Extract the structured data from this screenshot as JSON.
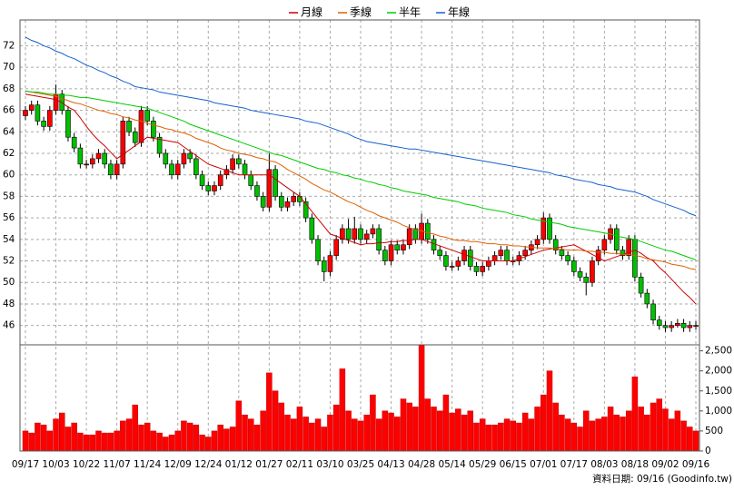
{
  "chart_data": {
    "type": "candlestick",
    "categories": [
      "09/17",
      null,
      null,
      null,
      null,
      "10/03",
      null,
      null,
      null,
      null,
      "10/22",
      null,
      null,
      null,
      null,
      "11/07",
      null,
      null,
      null,
      null,
      "11/24",
      null,
      null,
      null,
      null,
      "12/09",
      null,
      null,
      null,
      null,
      "12/24",
      null,
      null,
      null,
      null,
      "01/12",
      null,
      null,
      null,
      null,
      "01/27",
      null,
      null,
      null,
      null,
      "02/11",
      null,
      null,
      null,
      null,
      "03/10",
      null,
      null,
      null,
      null,
      "03/25",
      null,
      null,
      null,
      null,
      "04/13",
      null,
      null,
      null,
      null,
      "04/28",
      null,
      null,
      null,
      null,
      "05/14",
      null,
      null,
      null,
      null,
      "05/29",
      null,
      null,
      null,
      null,
      "06/15",
      null,
      null,
      null,
      null,
      "07/01",
      null,
      null,
      null,
      null,
      "07/17",
      null,
      null,
      null,
      null,
      "08/03",
      null,
      null,
      null,
      null,
      "08/18",
      null,
      null,
      null,
      null,
      "09/02",
      null,
      null,
      null,
      null,
      "09/16"
    ],
    "open": [
      65.5,
      66,
      66.5,
      65,
      64.5,
      66,
      67.5,
      66,
      63.5,
      62.5,
      61,
      61,
      61.5,
      62,
      61,
      60,
      61,
      65,
      64,
      63,
      66,
      65,
      63.5,
      62,
      61,
      60,
      61,
      62,
      61.5,
      60,
      59,
      58.5,
      59,
      60,
      60.5,
      61.5,
      61,
      60,
      59,
      58,
      57,
      60.5,
      58,
      57,
      57.5,
      58,
      57.5,
      56,
      54,
      52,
      51,
      52.5,
      54,
      55,
      54,
      55,
      54,
      54.5,
      55,
      53,
      52,
      53.5,
      53,
      53.5,
      55,
      54,
      55.5,
      54,
      53,
      52.5,
      51.5,
      51.5,
      52,
      53,
      51.5,
      51,
      51.5,
      52,
      52.5,
      53,
      52,
      52,
      52.5,
      53,
      53.5,
      54,
      56,
      54,
      53,
      52.5,
      52,
      51,
      50.5,
      50,
      52,
      53,
      54,
      55,
      53,
      52.5,
      54,
      50.5,
      49,
      48,
      46.5,
      46,
      45.8,
      46,
      46.2,
      45.8,
      46
    ],
    "high": [
      66.4,
      66.9,
      66.9,
      65.4,
      66.4,
      68.4,
      67.9,
      66.4,
      63.9,
      62.9,
      61.4,
      61.9,
      62.4,
      62.4,
      61.4,
      61.4,
      65.4,
      65.4,
      64.4,
      66.4,
      66.4,
      65.4,
      63.9,
      62.4,
      61.4,
      61.4,
      62.4,
      62.4,
      61.9,
      60.4,
      59.4,
      59.4,
      60.4,
      60.9,
      61.9,
      61.9,
      61.4,
      60.4,
      59.4,
      58.4,
      62,
      60.9,
      58.4,
      57.9,
      58.4,
      58.4,
      57.9,
      56.4,
      54.4,
      52.4,
      52.9,
      54.4,
      55.4,
      55.9,
      56.1,
      55.4,
      54.9,
      55.4,
      55.4,
      53.4,
      53.9,
      53.9,
      53.9,
      55.4,
      55.4,
      56.4,
      55.9,
      54.4,
      53.4,
      52.9,
      51.9,
      52.4,
      53.4,
      53.4,
      51.9,
      51.9,
      52.4,
      52.9,
      53.4,
      53.4,
      52.4,
      52.9,
      53.4,
      53.9,
      54.4,
      56.5,
      56.4,
      54.4,
      53.4,
      52.9,
      52.4,
      51.4,
      50.9,
      52.4,
      53.4,
      54.4,
      55.4,
      55.4,
      53.4,
      54.4,
      54.4,
      50.9,
      49.4,
      48.4,
      46.9,
      46.4,
      46.4,
      46.6,
      46.6,
      46.4,
      46.4
    ],
    "low": [
      65.1,
      65.6,
      64.6,
      64.1,
      64.1,
      65.6,
      65.6,
      63.1,
      62.1,
      60.6,
      60.6,
      60.6,
      61.1,
      60.6,
      59.6,
      59.6,
      60.6,
      63.6,
      62.6,
      62.6,
      64.6,
      63.1,
      61.6,
      60.6,
      59.6,
      59.6,
      60.6,
      61.1,
      59.6,
      58.6,
      58.1,
      58.1,
      58.6,
      59.6,
      60.1,
      60.6,
      59.6,
      58.6,
      57.6,
      56.6,
      56.6,
      57.6,
      56.6,
      56.6,
      57.1,
      57.1,
      55.6,
      53.6,
      51.6,
      50.1,
      50.6,
      52.1,
      53.6,
      53.6,
      53.6,
      53.6,
      53.6,
      54.1,
      52.6,
      51.6,
      51.6,
      52.6,
      52.6,
      53.1,
      53.6,
      53.6,
      53.6,
      52.6,
      52.1,
      51.1,
      51.1,
      51.1,
      51.6,
      51.1,
      50.6,
      50.6,
      51.1,
      51.6,
      52.1,
      51.6,
      51.6,
      51.6,
      52.1,
      52.6,
      53.1,
      53.6,
      53.6,
      52.6,
      52.1,
      51.6,
      50.6,
      50.1,
      48.8,
      49.6,
      51.6,
      52.6,
      53.6,
      52.6,
      52.1,
      52.1,
      50.1,
      48.6,
      47.6,
      46.1,
      45.6,
      45.4,
      45.4,
      45.8,
      45.4,
      45.4,
      45.6
    ],
    "close": [
      66,
      66.5,
      65,
      64.5,
      66,
      67.5,
      66,
      63.5,
      62.5,
      61,
      61,
      61.5,
      62,
      61,
      60,
      61,
      65,
      64,
      63,
      66,
      65,
      63.5,
      62,
      61,
      60,
      61,
      62,
      61.5,
      60,
      59,
      58.5,
      59,
      60,
      60.5,
      61.5,
      61,
      60,
      59,
      58,
      57,
      60.5,
      58,
      57,
      57.5,
      58,
      57.5,
      56,
      54,
      52,
      51,
      52.5,
      54,
      55,
      54,
      55,
      54,
      54.5,
      55,
      53,
      52,
      53.5,
      53,
      53.5,
      55,
      54,
      55.5,
      54,
      53,
      52.5,
      51.5,
      51.5,
      52,
      53,
      51.5,
      51,
      51.5,
      52,
      52.5,
      53,
      52,
      52,
      52.5,
      53,
      53.5,
      54,
      56,
      54,
      53,
      52.5,
      52,
      51,
      50.5,
      50,
      52,
      53,
      54,
      55,
      53,
      52.5,
      54,
      50.5,
      49,
      48,
      46.5,
      46,
      45.8,
      46,
      46.2,
      45.8,
      46,
      46
    ],
    "up_color": "#ff0000",
    "down_color": "#00c000",
    "ylim": [
      44.2,
      74.4
    ],
    "yticks": [
      46,
      48,
      50,
      52,
      54,
      56,
      58,
      60,
      62,
      64,
      66,
      68,
      70,
      72
    ],
    "grid": true,
    "legend": "top",
    "series": [
      {
        "name": "月線",
        "color": "#cc0000",
        "values": [
          67.5,
          67.4,
          67.3,
          67.2,
          67.1,
          67.0,
          66.7,
          66.3,
          66.0,
          65.3,
          64.5,
          63.8,
          63.2,
          62.7,
          62.1,
          61.5,
          61.9,
          62.3,
          62.7,
          63.1,
          63.5,
          63.4,
          63.3,
          63.2,
          63.1,
          63.0,
          62.6,
          62.2,
          61.8,
          61.4,
          61.0,
          60.8,
          60.6,
          60.4,
          60.2,
          60.0,
          60.0,
          60.0,
          60.0,
          60.0,
          60.0,
          59.6,
          59.2,
          58.8,
          58.4,
          58.0,
          57.3,
          56.6,
          55.9,
          55.2,
          54.5,
          54.3,
          54.1,
          53.9,
          53.7,
          53.5,
          53.6,
          53.6,
          53.7,
          53.7,
          53.8,
          53.8,
          53.9,
          53.9,
          54.0,
          54.0,
          53.8,
          53.6,
          53.4,
          53.2,
          53.0,
          52.8,
          52.6,
          52.4,
          52.2,
          52.0,
          52.0,
          52.0,
          52.0,
          52.0,
          52.0,
          52.2,
          52.4,
          52.6,
          52.8,
          53.0,
          53.1,
          53.2,
          53.3,
          53.4,
          53.5,
          53.2,
          52.9,
          52.6,
          52.3,
          52.0,
          52.2,
          52.4,
          52.6,
          52.8,
          53.0,
          52.7,
          52.3,
          52.0,
          51.4,
          50.9,
          50.3,
          49.7,
          49.1,
          48.6,
          48.0
        ]
      },
      {
        "name": "季線",
        "color": "#e06000",
        "values": [
          67.8,
          67.7,
          67.6,
          67.5,
          67.4,
          67.3,
          67.1,
          66.9,
          66.7,
          66.6,
          66.4,
          66.2,
          66.0,
          65.9,
          65.7,
          65.6,
          65.4,
          65.3,
          65.1,
          65.0,
          64.8,
          64.6,
          64.5,
          64.3,
          64.2,
          64.0,
          63.9,
          63.7,
          63.4,
          63.2,
          63.0,
          62.8,
          62.5,
          62.3,
          62.2,
          62.0,
          61.9,
          61.8,
          61.6,
          61.5,
          61.3,
          61.2,
          60.9,
          60.5,
          60.2,
          59.9,
          59.6,
          59.2,
          58.9,
          58.6,
          58.4,
          58.1,
          57.8,
          57.5,
          57.3,
          57.0,
          56.7,
          56.5,
          56.2,
          56.0,
          55.8,
          55.6,
          55.3,
          55.1,
          54.9,
          54.8,
          54.6,
          54.5,
          54.3,
          54.2,
          54.0,
          53.9,
          53.9,
          53.8,
          53.8,
          53.7,
          53.6,
          53.6,
          53.5,
          53.5,
          53.4,
          53.4,
          53.3,
          53.3,
          53.2,
          53.2,
          53.2,
          53.1,
          53.1,
          53.0,
          53.0,
          53.0,
          52.9,
          52.9,
          52.8,
          52.8,
          52.7,
          52.7,
          52.6,
          52.6,
          52.5,
          52.4,
          52.2,
          52.1,
          52.0,
          51.9,
          51.7,
          51.6,
          51.5,
          51.3,
          51.2
        ]
      },
      {
        "name": "半年",
        "color": "#00cc00",
        "values": [
          67.8,
          67.7,
          67.7,
          67.6,
          67.5,
          67.5,
          67.4,
          67.4,
          67.3,
          67.2,
          67.2,
          67.1,
          67.0,
          66.9,
          66.8,
          66.7,
          66.6,
          66.5,
          66.4,
          66.3,
          66.2,
          66.0,
          65.8,
          65.6,
          65.4,
          65.2,
          65.0,
          64.7,
          64.5,
          64.3,
          64.1,
          63.9,
          63.7,
          63.5,
          63.3,
          63.1,
          62.9,
          62.7,
          62.5,
          62.3,
          62.1,
          61.9,
          61.8,
          61.6,
          61.4,
          61.2,
          61.0,
          60.8,
          60.6,
          60.5,
          60.3,
          60.2,
          60.0,
          59.9,
          59.7,
          59.6,
          59.4,
          59.3,
          59.1,
          59.0,
          58.8,
          58.7,
          58.5,
          58.4,
          58.3,
          58.2,
          58.1,
          57.9,
          57.8,
          57.7,
          57.6,
          57.5,
          57.3,
          57.2,
          57.1,
          56.9,
          56.8,
          56.7,
          56.6,
          56.5,
          56.3,
          56.2,
          56.1,
          55.9,
          55.8,
          55.7,
          55.6,
          55.5,
          55.4,
          55.2,
          55.1,
          55.0,
          54.9,
          54.8,
          54.7,
          54.6,
          54.5,
          54.3,
          54.2,
          54.1,
          54.0,
          53.8,
          53.6,
          53.4,
          53.2,
          53.0,
          52.9,
          52.7,
          52.5,
          52.3,
          52.1
        ]
      },
      {
        "name": "年線",
        "color": "#1560d0",
        "values": [
          72.8,
          72.5,
          72.3,
          72.0,
          71.8,
          71.5,
          71.3,
          71.0,
          70.8,
          70.5,
          70.2,
          70.0,
          69.7,
          69.5,
          69.2,
          69.0,
          68.7,
          68.5,
          68.2,
          68.1,
          68.0,
          67.9,
          67.7,
          67.6,
          67.5,
          67.4,
          67.3,
          67.2,
          67.1,
          67.0,
          66.9,
          66.7,
          66.6,
          66.5,
          66.4,
          66.3,
          66.2,
          66.0,
          65.9,
          65.8,
          65.7,
          65.6,
          65.5,
          65.4,
          65.3,
          65.2,
          65.0,
          64.9,
          64.8,
          64.6,
          64.4,
          64.2,
          64.0,
          63.8,
          63.5,
          63.3,
          63.1,
          63.0,
          62.9,
          62.8,
          62.7,
          62.6,
          62.5,
          62.4,
          62.4,
          62.3,
          62.2,
          62.1,
          62.0,
          61.9,
          61.8,
          61.7,
          61.6,
          61.5,
          61.4,
          61.3,
          61.2,
          61.1,
          61.0,
          60.9,
          60.8,
          60.7,
          60.6,
          60.5,
          60.4,
          60.3,
          60.2,
          60.0,
          59.9,
          59.8,
          59.6,
          59.5,
          59.4,
          59.3,
          59.1,
          59.0,
          58.9,
          58.7,
          58.6,
          58.5,
          58.4,
          58.2,
          58.0,
          57.7,
          57.5,
          57.3,
          57.1,
          56.9,
          56.7,
          56.4,
          56.2
        ]
      }
    ],
    "volume": {
      "color": "#ff0000",
      "values": [
        500,
        450,
        700,
        650,
        500,
        800,
        950,
        600,
        700,
        450,
        400,
        400,
        500,
        450,
        450,
        500,
        750,
        800,
        1150,
        650,
        700,
        500,
        450,
        350,
        400,
        500,
        750,
        700,
        650,
        400,
        350,
        500,
        650,
        550,
        600,
        1250,
        900,
        800,
        650,
        1000,
        1950,
        1500,
        1200,
        900,
        800,
        1100,
        850,
        700,
        800,
        600,
        900,
        1150,
        2050,
        1000,
        800,
        750,
        900,
        1400,
        800,
        1000,
        950,
        850,
        1300,
        1200,
        1100,
        2650,
        1300,
        1100,
        1000,
        1400,
        950,
        1050,
        900,
        1000,
        700,
        800,
        650,
        650,
        700,
        800,
        750,
        700,
        950,
        800,
        1100,
        1400,
        2000,
        1200,
        900,
        800,
        700,
        600,
        1000,
        750,
        800,
        850,
        1100,
        900,
        850,
        1000,
        1850,
        1100,
        900,
        1200,
        1300,
        1050,
        800,
        1000,
        750,
        600,
        500
      ],
      "ylim": [
        0,
        2650
      ],
      "yticks": [
        0,
        500,
        {
          "value": 1000,
          "label": "1,000"
        },
        {
          "value": 1500,
          "label": "1,500"
        },
        {
          "value": 2000,
          "label": "2,000"
        },
        {
          "value": 2500,
          "label": "2,500"
        }
      ]
    },
    "source": "資料日期: 09/16 (Goodinfo.tw)"
  }
}
